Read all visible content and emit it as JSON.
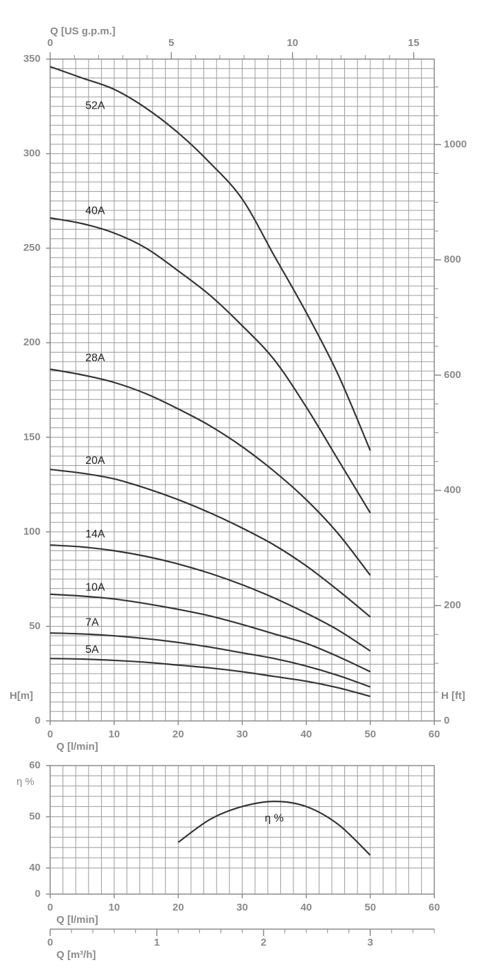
{
  "chart_data": [
    {
      "type": "line",
      "xlabel": "Q [l/min]",
      "ylabel": "H[m]",
      "x2label": "Q [US g.p.m.]",
      "y2label": "H [ft]",
      "xlim": [
        0,
        60
      ],
      "xticks": [
        0,
        10,
        20,
        30,
        40,
        50,
        60
      ],
      "x2lim": [
        0,
        15.85
      ],
      "x2ticks": [
        0,
        5,
        10,
        15
      ],
      "ylim": [
        0,
        350
      ],
      "yticks": [
        0,
        50,
        100,
        150,
        200,
        250,
        300,
        350
      ],
      "y2lim": [
        0,
        1148.3
      ],
      "y2ticks": [
        0,
        200,
        400,
        600,
        800,
        1000
      ],
      "grid": true,
      "minor": {
        "x": 2,
        "y": 5,
        "x2": 1,
        "y2": 50
      },
      "x": [
        0,
        5,
        10,
        15,
        20,
        25,
        30,
        35,
        40,
        45,
        50
      ],
      "series": [
        {
          "name": "5A",
          "color": "#333333",
          "values": [
            33,
            32.7,
            32,
            31,
            29.5,
            28,
            26,
            23.5,
            21,
            17.5,
            13
          ]
        },
        {
          "name": "7A",
          "color": "#333333",
          "values": [
            46.5,
            46,
            45,
            43.5,
            41.5,
            39,
            36,
            33,
            29,
            24,
            18
          ]
        },
        {
          "name": "10A",
          "color": "#333333",
          "values": [
            67,
            66,
            64.5,
            62,
            59,
            55.5,
            51,
            46,
            41,
            34,
            26
          ]
        },
        {
          "name": "14A",
          "color": "#333333",
          "values": [
            93,
            92,
            90,
            87,
            83,
            78,
            72,
            65,
            57,
            48,
            37
          ]
        },
        {
          "name": "20A",
          "color": "#333333",
          "values": [
            133,
            131,
            128,
            123,
            117,
            110,
            102,
            93,
            82,
            69,
            55
          ]
        },
        {
          "name": "28A",
          "color": "#333333",
          "values": [
            186,
            183,
            179,
            173,
            165,
            156,
            145,
            132,
            117,
            99,
            77
          ]
        },
        {
          "name": "40A",
          "color": "#333333",
          "values": [
            266,
            263,
            258,
            250,
            238,
            225,
            209,
            191,
            166,
            138,
            110
          ]
        },
        {
          "name": "52A",
          "color": "#333333",
          "values": [
            346,
            340,
            334,
            324,
            311,
            295,
            276,
            246,
            216,
            183,
            143
          ]
        }
      ]
    },
    {
      "type": "line",
      "xlabel": "Q [l/min]",
      "ylabel": "η %",
      "x2label": "Q [m³/h]",
      "xlim": [
        0,
        60
      ],
      "xticks": [
        0,
        10,
        20,
        30,
        40,
        50,
        60
      ],
      "x2lim": [
        0,
        3.6
      ],
      "x2ticks": [
        0,
        1,
        2,
        3
      ],
      "ylim": [
        0,
        60
      ],
      "yticks": [
        0,
        40,
        50,
        60
      ],
      "grid": true,
      "minor": {
        "x": 2,
        "y": 2,
        "x2": 0.2
      },
      "x": [
        20,
        25,
        30,
        35,
        40,
        45,
        50
      ],
      "series": [
        {
          "name": "η %",
          "color": "#333333",
          "values": [
            45,
            49.5,
            52,
            53,
            52,
            48.5,
            42.5
          ]
        }
      ]
    }
  ]
}
